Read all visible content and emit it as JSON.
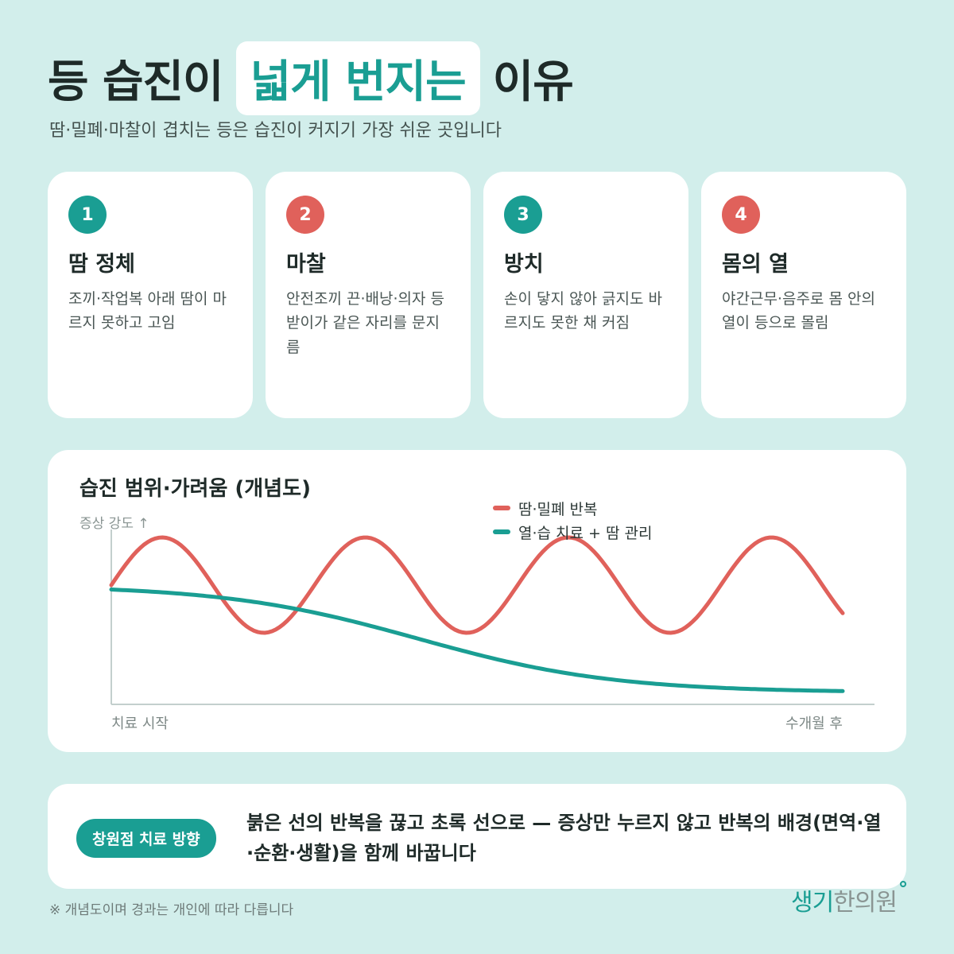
{
  "title": {
    "part1": "등 습진이",
    "highlight": "넓게 번지는",
    "part2": "이유"
  },
  "subtitle": "땀·밀폐·마찰이 겹치는 등은 습진이 커지기 가장 쉬운 곳입니다",
  "cards": [
    {
      "num": "1",
      "title": "땀 정체",
      "desc": "조끼·작업복 아래 땀이 마르지 못하고 고임"
    },
    {
      "num": "2",
      "title": "마찰",
      "desc": "안전조끼 끈·배낭·의자 등받이가 같은 자리를 문지름"
    },
    {
      "num": "3",
      "title": "방치",
      "desc": "손이 닿지 않아 긁지도 바르지도 못한 채 커짐"
    },
    {
      "num": "4",
      "title": "몸의 열",
      "desc": "야간근무·음주로 몸 안의 열이 등으로 몰림"
    }
  ],
  "colors": {
    "teal": "#1a9e93",
    "red": "#e0615b"
  },
  "chart_data": {
    "type": "line",
    "title": "습진 범위·가려움 (개념도)",
    "ylabel": "증상 강도 ↑",
    "x_start_label": "치료 시작",
    "x_end_label": "수개월 후",
    "grid": false,
    "legend_position": "top-right",
    "series": [
      {
        "name": "땀·밀폐 반복",
        "color": "#e0615b"
      },
      {
        "name": "열·습 치료 + 땀 관리",
        "color": "#1a9e93"
      }
    ]
  },
  "bottom": {
    "pill": "창원점 치료 방향",
    "text": "붉은 선의 반복을 끊고 초록 선으로 — 증상만 누르지 않고 반복의 배경(면역·열·순환·생활)을 함께 바꿉니다"
  },
  "footnote": "※ 개념도이며 경과는 개인에 따라 다릅니다",
  "logo": {
    "part1": "생기",
    "part2": "한의원"
  }
}
